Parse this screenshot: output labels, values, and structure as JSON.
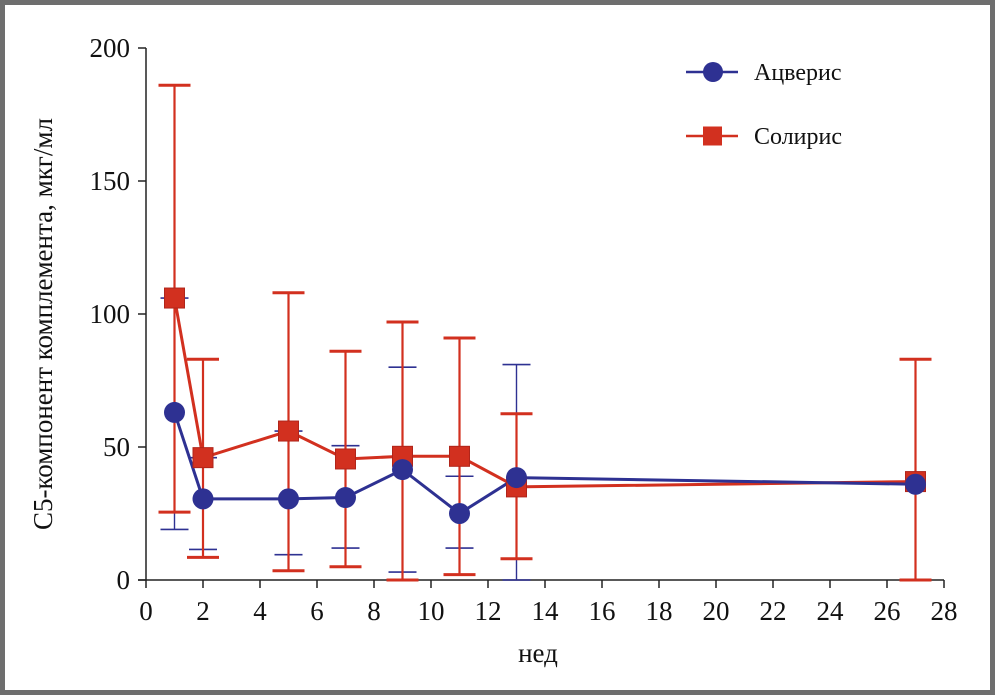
{
  "chart_data": {
    "type": "line",
    "title": "",
    "xlabel": "нед",
    "ylabel": "С5-компонент комплемента, мкг/мл",
    "xlim": [
      0,
      28
    ],
    "ylim": [
      0,
      200
    ],
    "xticks": [
      0,
      2,
      4,
      6,
      8,
      10,
      12,
      14,
      16,
      18,
      20,
      22,
      24,
      26,
      28
    ],
    "yticks": [
      0,
      50,
      100,
      150,
      200
    ],
    "grid": false,
    "legend_position": "top-right",
    "series": [
      {
        "name": "Ацверис",
        "color": "#2e3192",
        "marker": "circle",
        "x": [
          1,
          2,
          5,
          7,
          9,
          11,
          13,
          27
        ],
        "y": [
          63,
          30.5,
          30.5,
          31,
          41.5,
          25,
          38.5,
          36
        ],
        "err_low": [
          19,
          11.5,
          9.5,
          12,
          3,
          12,
          0,
          0
        ],
        "err_high": [
          106,
          46,
          56,
          50.5,
          80,
          39,
          81,
          83
        ]
      },
      {
        "name": "Солирис",
        "color": "#d2301f",
        "marker": "square",
        "x": [
          1,
          2,
          5,
          7,
          9,
          11,
          13,
          27
        ],
        "y": [
          106,
          46,
          56,
          45.5,
          46.5,
          46.5,
          35,
          37
        ],
        "err_low": [
          25.5,
          8.5,
          3.5,
          5,
          0,
          2,
          8,
          0
        ],
        "err_high": [
          186,
          83,
          108,
          86,
          97,
          91,
          62.5,
          83
        ]
      }
    ]
  }
}
